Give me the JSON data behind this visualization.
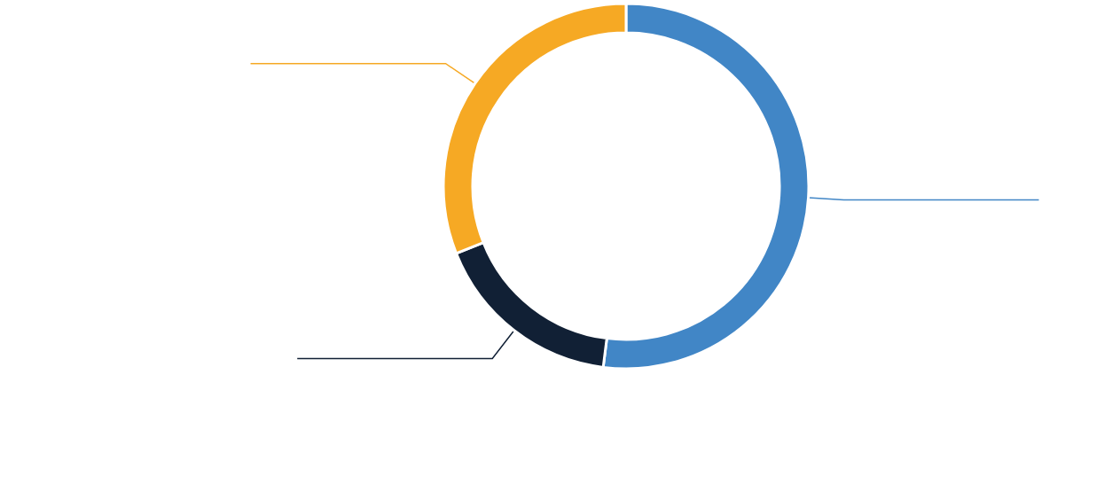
{
  "chart_data": {
    "type": "donut",
    "categories": [
      null,
      null,
      null
    ],
    "values": [
      52,
      17,
      31
    ],
    "colors": [
      "#4186c6",
      "#112035",
      "#f6a924"
    ]
  }
}
